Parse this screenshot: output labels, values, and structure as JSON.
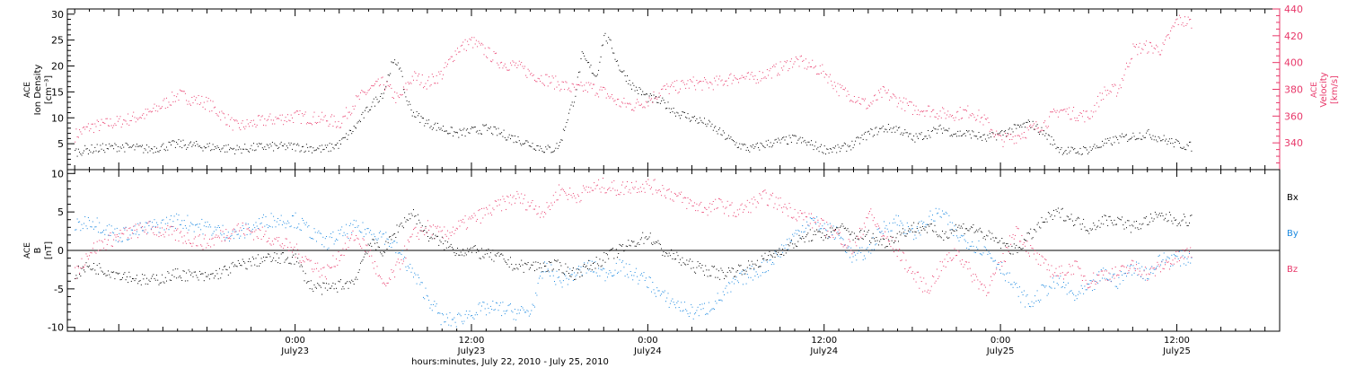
{
  "colors": {
    "density": "#000000",
    "velocity": "#e8386a",
    "bx": "#000000",
    "by": "#1a88e0",
    "bz": "#e8386a",
    "axis": "#000000"
  },
  "x_axis": {
    "label": "hours:minutes, July 22, 2010 - July 25, 2010",
    "ticks": [
      {
        "t": 24,
        "time": "0:00",
        "date": "July23"
      },
      {
        "t": 36,
        "time": "12:00",
        "date": "July23"
      },
      {
        "t": 48,
        "time": "0:00",
        "date": "July24"
      },
      {
        "t": 60,
        "time": "12:00",
        "date": "July24"
      },
      {
        "t": 72,
        "time": "0:00",
        "date": "July25"
      },
      {
        "t": 84,
        "time": "12:00",
        "date": "July25"
      }
    ],
    "range_hours": [
      8.5,
      91
    ]
  },
  "chart_data": [
    {
      "type": "scatter",
      "panel": "plasma",
      "ylabel_left": [
        "ACE",
        "Ion Density",
        "[cm⁻³]"
      ],
      "ylabel_right": [
        "ACE",
        "Velocity",
        "[km/s]"
      ],
      "ylim_left": [
        0,
        31
      ],
      "yticks_left": [
        5,
        10,
        15,
        20,
        25,
        30
      ],
      "ylim_right": [
        320,
        440
      ],
      "yticks_right": [
        340,
        360,
        380,
        400,
        420,
        440
      ],
      "series": [
        {
          "key": "density",
          "x_hours": [
            9,
            10,
            12,
            14,
            16,
            18,
            20,
            22,
            24,
            26,
            27,
            28,
            29,
            30,
            30.5,
            31,
            31.5,
            32,
            33,
            34,
            35,
            36,
            37,
            38,
            39,
            40,
            41,
            41.5,
            42,
            42.5,
            43,
            43.5,
            44,
            44.5,
            45,
            45.5,
            46,
            47,
            48,
            49,
            50,
            51,
            52,
            53,
            54,
            55,
            56,
            57,
            58,
            59,
            60,
            61,
            62,
            63,
            64,
            65,
            66,
            67,
            68,
            69,
            70,
            71,
            72,
            73,
            74,
            75,
            76,
            77,
            78,
            79,
            80,
            81,
            82,
            83,
            84,
            85
          ],
          "values": [
            3.5,
            4,
            4.5,
            4,
            5,
            4.5,
            4,
            4.5,
            4.5,
            4,
            5,
            8,
            12,
            15,
            20,
            21,
            14,
            11,
            9,
            8,
            7,
            7.5,
            8,
            7,
            6,
            5,
            4,
            4,
            5,
            10,
            14,
            22,
            20,
            18,
            26,
            24,
            20,
            16,
            14,
            13,
            11,
            10,
            9,
            7,
            5,
            4,
            5,
            5.5,
            6,
            5,
            4,
            4,
            5,
            7,
            8,
            8,
            6,
            7,
            8,
            7,
            7,
            6,
            7,
            8,
            9,
            7,
            4,
            3.5,
            4,
            5,
            6,
            6.5,
            7,
            6,
            5,
            4.5
          ]
        },
        {
          "key": "velocity",
          "x_hours": [
            9,
            10,
            12,
            14,
            16,
            18,
            20,
            22,
            24,
            26,
            27,
            28,
            29,
            30,
            31,
            32,
            33,
            34,
            35,
            36,
            37,
            38,
            39,
            40,
            41,
            42,
            43,
            44,
            45,
            46,
            47,
            48,
            49,
            50,
            51,
            52,
            53,
            54,
            55,
            56,
            57,
            58,
            59,
            60,
            61,
            62,
            63,
            64,
            65,
            66,
            67,
            68,
            69,
            70,
            71,
            72,
            73,
            74,
            75,
            76,
            77,
            78,
            79,
            80,
            81,
            82,
            83,
            84,
            85
          ],
          "values": [
            346,
            352,
            356,
            362,
            376,
            370,
            352,
            357,
            360,
            358,
            355,
            370,
            380,
            385,
            372,
            390,
            385,
            392,
            410,
            416,
            408,
            400,
            398,
            392,
            388,
            384,
            380,
            382,
            378,
            370,
            368,
            372,
            380,
            382,
            385,
            384,
            386,
            390,
            388,
            392,
            396,
            402,
            398,
            393,
            380,
            375,
            368,
            378,
            372,
            366,
            365,
            362,
            362,
            364,
            356,
            342,
            345,
            350,
            355,
            365,
            362,
            360,
            378,
            380,
            410,
            412,
            410,
            432,
            430
          ]
        }
      ]
    },
    {
      "type": "scatter",
      "panel": "magnetic",
      "ylabel_left": [
        "ACE",
        "B",
        "[nT]"
      ],
      "ylim": [
        -10.5,
        10.5
      ],
      "yticks": [
        -10,
        -5,
        0,
        5,
        10
      ],
      "zero_line": true,
      "legend_placement": "right",
      "series": [
        {
          "key": "bx",
          "name": "Bx",
          "x_hours": [
            9,
            10,
            12,
            14,
            16,
            18,
            20,
            22,
            24,
            25,
            26,
            27,
            28,
            29,
            30,
            31,
            32,
            33,
            34,
            35,
            36,
            37,
            38,
            39,
            40,
            41,
            42,
            43,
            44,
            45,
            46,
            47,
            48,
            49,
            50,
            51,
            52,
            53,
            54,
            55,
            56,
            57,
            58,
            59,
            60,
            61,
            62,
            63,
            64,
            65,
            66,
            67,
            68,
            69,
            70,
            71,
            72,
            73,
            74,
            75,
            76,
            77,
            78,
            79,
            80,
            81,
            82,
            83,
            84,
            85
          ],
          "values": [
            -3,
            -2,
            -3,
            -4,
            -3,
            -3.5,
            -2,
            -1,
            -1,
            -4.5,
            -5,
            -4.5,
            -4,
            1,
            0,
            3,
            5,
            2,
            1,
            0,
            0,
            -0.5,
            -1,
            -2,
            -2,
            -2,
            -2,
            -3,
            -2,
            -1,
            0,
            1,
            2,
            0,
            -1,
            -2,
            -2.5,
            -3,
            -2.5,
            -2,
            -1,
            0,
            1,
            2,
            2,
            3,
            2,
            2,
            1,
            2,
            3,
            3,
            2,
            3,
            3,
            2,
            1,
            0,
            2,
            4,
            5,
            4,
            3,
            4,
            4,
            3,
            4,
            4.5,
            4,
            4
          ]
        },
        {
          "key": "by",
          "name": "By",
          "x_hours": [
            9,
            10,
            12,
            14,
            16,
            18,
            20,
            22,
            24,
            26,
            28,
            30,
            31,
            32,
            33,
            34,
            35,
            36,
            37,
            38,
            39,
            40,
            41,
            42,
            43,
            44,
            45,
            46,
            47,
            48,
            49,
            50,
            51,
            52,
            53,
            54,
            55,
            56,
            57,
            58,
            59,
            60,
            61,
            62,
            63,
            64,
            65,
            66,
            67,
            68,
            69,
            70,
            71,
            72,
            73,
            74,
            75,
            76,
            77,
            78,
            79,
            80,
            81,
            82,
            83,
            84,
            85
          ],
          "values": [
            3,
            4,
            2,
            3,
            4,
            3,
            2,
            4,
            4,
            1,
            3,
            2,
            0,
            -3,
            -6,
            -9,
            -9,
            -8,
            -7.5,
            -7.5,
            -8,
            -8,
            -2,
            -4,
            -3,
            -2,
            -3,
            -2,
            -3,
            -4,
            -6,
            -7,
            -8,
            -7.5,
            -6,
            -4,
            -3,
            -2,
            0,
            2,
            4,
            3,
            2,
            -1,
            0,
            3,
            4,
            2,
            4,
            5,
            2,
            1,
            0,
            -2,
            -5,
            -7,
            -5,
            -4,
            -6,
            -5,
            -3,
            -4,
            -2,
            -3,
            -1,
            -1,
            -1
          ]
        },
        {
          "key": "bz",
          "name": "Bz",
          "x_hours": [
            9,
            10,
            12,
            14,
            16,
            18,
            20,
            22,
            24,
            26,
            28,
            29,
            30,
            31,
            32,
            33,
            34,
            35,
            36,
            37,
            38,
            39,
            40,
            41,
            42,
            43,
            44,
            45,
            46,
            47,
            48,
            49,
            50,
            51,
            52,
            53,
            54,
            55,
            56,
            57,
            58,
            59,
            60,
            61,
            62,
            63,
            64,
            65,
            66,
            67,
            68,
            69,
            70,
            71,
            72,
            73,
            74,
            75,
            76,
            77,
            78,
            79,
            80,
            81,
            82,
            83,
            84,
            85
          ],
          "values": [
            -3,
            0,
            2,
            3,
            2,
            1,
            3,
            2,
            0,
            -3,
            2,
            0,
            -5,
            -2,
            2,
            3,
            2,
            3,
            4,
            5,
            6,
            7,
            6,
            5,
            8,
            7,
            8,
            8.5,
            8,
            8.5,
            8.5,
            8,
            7,
            6,
            5.5,
            6,
            5,
            6,
            7,
            6,
            5,
            4,
            3,
            2,
            0,
            5,
            2,
            0,
            -3,
            -5,
            -2,
            0,
            -3,
            -5,
            -2,
            3,
            0,
            -2,
            -3,
            -2,
            -4,
            -3,
            -3,
            -2,
            -3,
            -2,
            -1,
            0
          ]
        }
      ]
    }
  ]
}
